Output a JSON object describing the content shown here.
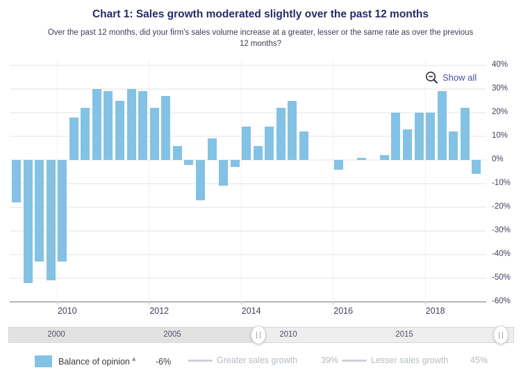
{
  "header": {
    "title": "Chart 1: Sales growth moderated slightly over the past 12 months",
    "subtitle": "Over the past 12 months, did your firm's sales volume increase at a greater, lesser or the same rate as over the previous 12 months?"
  },
  "toolbar": {
    "show_all_label": "Show all",
    "show_all_icon": "zoom-out-icon"
  },
  "legend": {
    "balance": {
      "label": "Balance of opinion",
      "footnote": "a",
      "value": "-6%"
    },
    "greater": {
      "label": "Greater sales growth",
      "value": "39%"
    },
    "lesser": {
      "label": "Lesser sales growth",
      "value": "45%"
    }
  },
  "navigator": {
    "labels": [
      "2000",
      "2005",
      "2010",
      "2015"
    ]
  },
  "colors": {
    "bar": "#83c2e4",
    "title_text": "#272b66",
    "axis_label": "#3f3f5e",
    "show_all_text": "#4a4fa5",
    "legend_muted_text": "#b3bcc3",
    "legend_line_swatch": "#ccd2d8"
  },
  "chart_data": {
    "type": "bar",
    "title": "Chart 1: Sales growth moderated slightly over the past 12 months",
    "subtitle": "Over the past 12 months, did your firm's sales volume increase at a greater, lesser or the same rate as over the previous 12 months?",
    "y_unit": "%",
    "ylim": [
      -60,
      40
    ],
    "y_step": 10,
    "y_tick_labels": [
      "40%",
      "30%",
      "20%",
      "10%",
      "0%",
      "-10%",
      "-20%",
      "-30%",
      "-40%",
      "-50%",
      "-60%"
    ],
    "x_tick_labels": [
      "2010",
      "2012",
      "2014",
      "2016",
      "2018"
    ],
    "grid": true,
    "legend_position": "bottom",
    "navigator_labels": [
      "2000",
      "2005",
      "2010",
      "2015"
    ],
    "categories": [
      "2009 Q1",
      "2009 Q2",
      "2009 Q3",
      "2009 Q4",
      "2010 Q1",
      "2010 Q2",
      "2010 Q3",
      "2010 Q4",
      "2011 Q1",
      "2011 Q2",
      "2011 Q3",
      "2011 Q4",
      "2012 Q1",
      "2012 Q2",
      "2012 Q3",
      "2012 Q4",
      "2013 Q1",
      "2013 Q2",
      "2013 Q3",
      "2013 Q4",
      "2014 Q1",
      "2014 Q2",
      "2014 Q3",
      "2014 Q4",
      "2015 Q1",
      "2015 Q2",
      "2015 Q3",
      "2015 Q4",
      "2016 Q1",
      "2016 Q2",
      "2016 Q3",
      "2016 Q4",
      "2017 Q1",
      "2017 Q2",
      "2017 Q3",
      "2017 Q4",
      "2018 Q1",
      "2018 Q2",
      "2018 Q3",
      "2018 Q4",
      "2019 Q1"
    ],
    "series": [
      {
        "name": "Balance of opinion",
        "type": "column",
        "visible": true,
        "color": "#83c2e4",
        "latest_value": "-6%",
        "values": [
          -18,
          -52,
          -43,
          -51,
          -43,
          18,
          22,
          30,
          29,
          25,
          30,
          29,
          22,
          27,
          6,
          -2,
          -17,
          9,
          -11,
          -3,
          14,
          6,
          14,
          22,
          25,
          12,
          0,
          0,
          -4,
          0,
          1,
          0,
          2,
          20,
          13,
          20,
          20,
          29,
          12,
          22,
          -6
        ]
      },
      {
        "name": "Greater sales growth",
        "type": "line",
        "visible": false,
        "latest_value": "39%"
      },
      {
        "name": "Lesser sales growth",
        "type": "line",
        "visible": false,
        "latest_value": "45%"
      }
    ]
  }
}
